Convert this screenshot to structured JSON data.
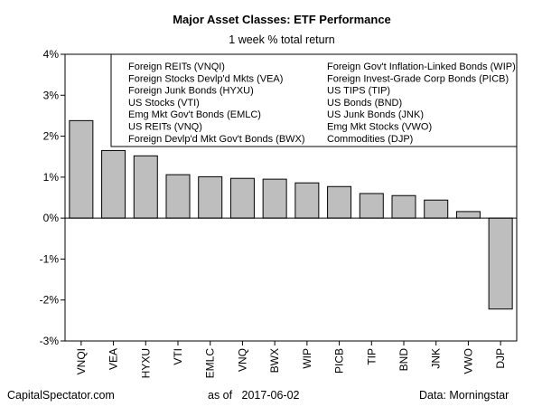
{
  "chart_data": {
    "type": "bar",
    "title": "Major Asset Classes: ETF Performance",
    "subtitle": "1 week % total return",
    "categories": [
      "VNQI",
      "VEA",
      "HYXU",
      "VTI",
      "EMLC",
      "VNQ",
      "BWX",
      "WIP",
      "PICB",
      "TIP",
      "BND",
      "JNK",
      "VWO",
      "DJP"
    ],
    "values": [
      2.38,
      1.65,
      1.52,
      1.06,
      1.01,
      0.97,
      0.95,
      0.86,
      0.77,
      0.6,
      0.55,
      0.44,
      0.16,
      -2.22
    ],
    "ylim": [
      -3,
      4
    ],
    "yticks": [
      -3,
      -2,
      -1,
      0,
      1,
      2,
      3,
      4
    ],
    "ytick_labels": [
      "-3%",
      "-2%",
      "-1%",
      "0%",
      "1%",
      "2%",
      "3%",
      "4%"
    ],
    "bar_color": "#bebebe",
    "grid": false,
    "legend_position": "top-right",
    "legend_columns": [
      [
        "Foreign REITs (VNQI)",
        "Foreign Stocks Devlp'd Mkts (VEA)",
        "Foreign Junk Bonds (HYXU)",
        "US Stocks (VTI)",
        "Emg Mkt Gov't Bonds (EMLC)",
        "US REITs (VNQ)",
        "Foreign Devlp'd Mkt Gov't Bonds (BWX)"
      ],
      [
        "Foreign Gov't Inflation-Linked Bonds (WIP)",
        "Foreign Invest-Grade Corp Bonds (PICB)",
        "US TIPS (TIP)",
        "US Bonds (BND)",
        "US Junk Bonds (JNK)",
        "Emg Mkt Stocks (VWO)",
        "Commodities (DJP)"
      ]
    ]
  },
  "footer": {
    "source": "CapitalSpectator.com",
    "as_of_label": "as of",
    "date": "2017-06-02",
    "data_credit": "Data: Morningstar"
  }
}
